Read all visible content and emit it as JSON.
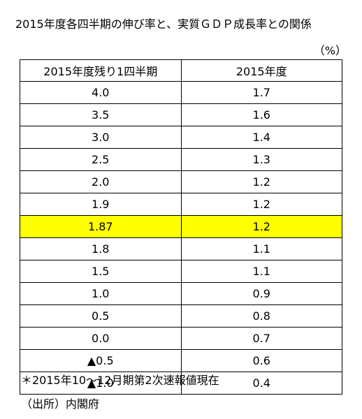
{
  "title": "2015年度各四半期の伸び率と、実質ＧＤＰ成長率との関係",
  "unit": "（%）",
  "table": {
    "headers": [
      "2015年度残り1四半期",
      "2015年度"
    ],
    "rows": [
      [
        "4.0",
        "1.7"
      ],
      [
        "3.5",
        "1.6"
      ],
      [
        "3.0",
        "1.4"
      ],
      [
        "2.5",
        "1.3"
      ],
      [
        "2.0",
        "1.2"
      ],
      [
        "1.9",
        "1.2"
      ],
      [
        "1.87",
        "1.2"
      ],
      [
        "1.8",
        "1.1"
      ],
      [
        "1.5",
        "1.1"
      ],
      [
        "1.0",
        "0.9"
      ],
      [
        "0.5",
        "0.8"
      ],
      [
        "0.0",
        "0.7"
      ],
      [
        "▲0.5",
        "0.6"
      ],
      [
        "▲1.0",
        "0.4"
      ]
    ],
    "highlight_row": 6,
    "highlight_color": "#ffff00"
  },
  "note": "＊2015年10～12月期第2次速報値現在",
  "source": "（出所）内閣府"
}
